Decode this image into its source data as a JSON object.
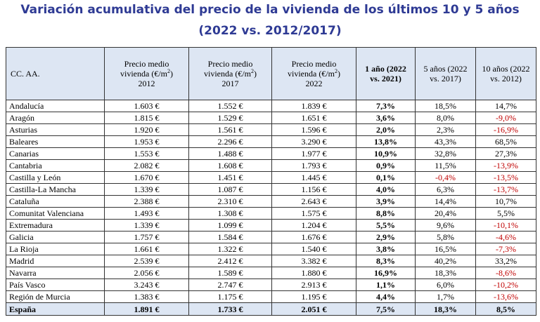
{
  "title_line1": "Variación acumulativa del precio de la vivienda de los últimos 10 y 5 años",
  "title_line2": "(2022 vs. 2012/2017)",
  "columns": [
    "CC. AA.",
    "Precio medio vivienda (€/m2) 2012",
    "Precio medio vivienda (€/m2) 2017",
    "Precio medio vivienda (€/m2) 2022",
    "1 año (2022 vs. 2021)",
    "5 años (2022 vs. 2017)",
    "10 años (2022 vs. 2012)"
  ],
  "rows": [
    [
      "Andalucía",
      "1.603 €",
      "1.552 €",
      "1.839 €",
      "7,3%",
      "18,5%",
      "14,7%"
    ],
    [
      "Aragón",
      "1.815 €",
      "1.529 €",
      "1.651 €",
      "3,6%",
      "8,0%",
      "-9,0%"
    ],
    [
      "Asturias",
      "1.920 €",
      "1.561 €",
      "1.596 €",
      "2,0%",
      "2,3%",
      "-16,9%"
    ],
    [
      "Baleares",
      "1.953 €",
      "2.296 €",
      "3.290 €",
      "13,8%",
      "43,3%",
      "68,5%"
    ],
    [
      "Canarias",
      "1.553 €",
      "1.488 €",
      "1.977 €",
      "10,9%",
      "32,8%",
      "27,3%"
    ],
    [
      "Cantabria",
      "2.082 €",
      "1.608 €",
      "1.793 €",
      "0,9%",
      "11,5%",
      "-13,9%"
    ],
    [
      "Castilla y León",
      "1.670 €",
      "1.451 €",
      "1.445 €",
      "0,1%",
      "-0,4%",
      "-13,5%"
    ],
    [
      "Castilla-La Mancha",
      "1.339 €",
      "1.087 €",
      "1.156 €",
      "4,0%",
      "6,3%",
      "-13,7%"
    ],
    [
      "Cataluña",
      "2.388 €",
      "2.310 €",
      "2.643 €",
      "3,9%",
      "14,4%",
      "10,7%"
    ],
    [
      "Comunitat Valenciana",
      "1.493 €",
      "1.308 €",
      "1.575 €",
      "8,8%",
      "20,4%",
      "5,5%"
    ],
    [
      "Extremadura",
      "1.339 €",
      "1.099 €",
      "1.204 €",
      "5,5%",
      "9,6%",
      "-10,1%"
    ],
    [
      "Galicia",
      "1.757 €",
      "1.584 €",
      "1.676 €",
      "2,9%",
      "5,8%",
      "-4,6%"
    ],
    [
      "La Rioja",
      "1.661 €",
      "1.322 €",
      "1.540 €",
      "3,8%",
      "16,5%",
      "-7,3%"
    ],
    [
      "Madrid",
      "2.539 €",
      "2.412 €",
      "3.382 €",
      "8,3%",
      "40,2%",
      "33,2%"
    ],
    [
      "Navarra",
      "2.056 €",
      "1.589 €",
      "1.880 €",
      "16,9%",
      "18,3%",
      "-8,6%"
    ],
    [
      "País Vasco",
      "3.243 €",
      "2.747 €",
      "2.913 €",
      "1,1%",
      "6,0%",
      "-10,2%"
    ],
    [
      "Región de Murcia",
      "1.383 €",
      "1.175 €",
      "1.195 €",
      "4,4%",
      "1,7%",
      "-13,6%"
    ]
  ],
  "total": [
    "España",
    "1.891 €",
    "1.733 €",
    "2.051 €",
    "7,5%",
    "18,3%",
    "8,5%"
  ],
  "colors": {
    "title": "#2e3a94",
    "header_bg": "#dde6f3",
    "negative": "#c00000",
    "border": "#333333"
  }
}
